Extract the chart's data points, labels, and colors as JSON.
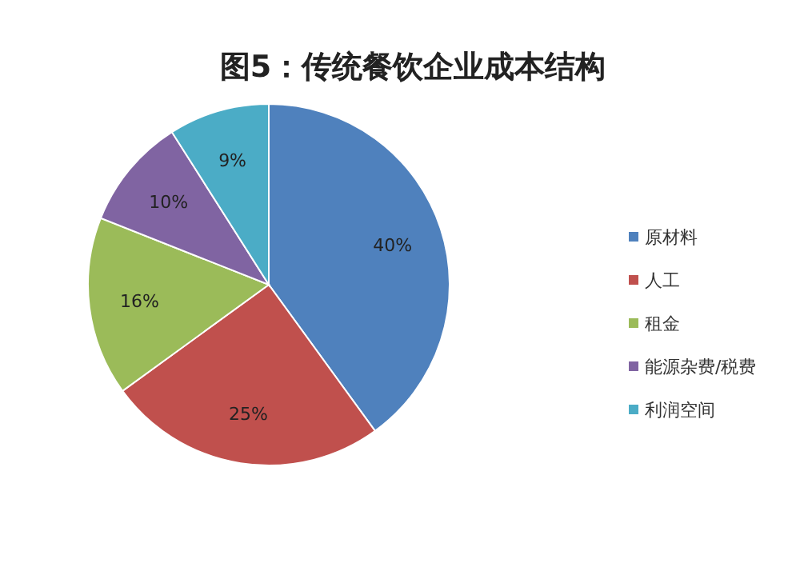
{
  "chart_data": {
    "type": "pie",
    "title": "图5：传统餐饮企业成本结构",
    "categories": [
      "原材料",
      "人工",
      "租金",
      "能源杂费/税费",
      "利润空间"
    ],
    "values": [
      40,
      25,
      16,
      10,
      9
    ],
    "value_labels": [
      "40%",
      "25%",
      "16%",
      "10%",
      "9%"
    ],
    "colors": [
      "#4f81bd",
      "#c0504d",
      "#9bbb59",
      "#8064a2",
      "#4bacc6"
    ],
    "legend": "right"
  }
}
